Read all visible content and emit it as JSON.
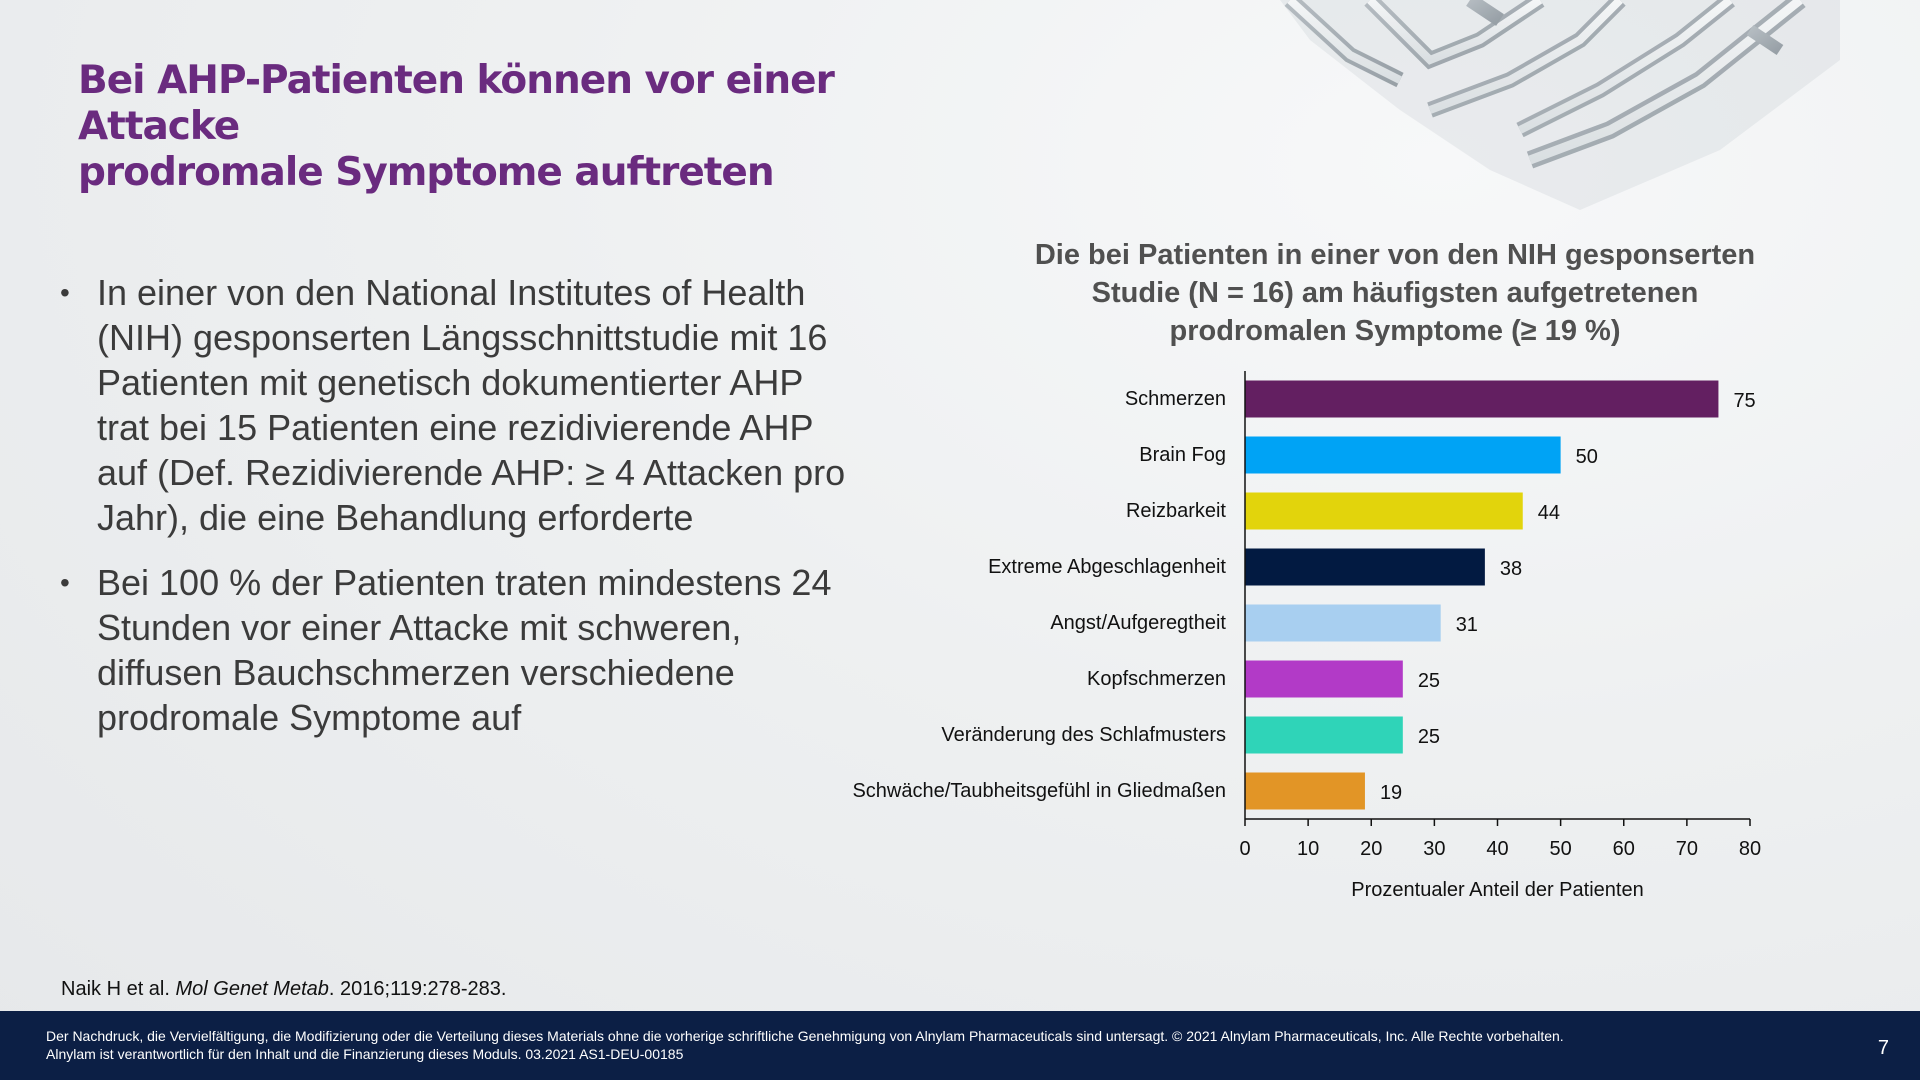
{
  "slide": {
    "title_line1": "Bei AHP-Patienten können vor einer Attacke",
    "title_line2": "prodromale Symptome auftreten",
    "bullets": [
      "In einer von den National Institutes of Health (NIH) gesponserten Längsschnittstudie mit 16 Patienten mit genetisch dokumentierter AHP trat bei 15 Patienten eine rezidivierende AHP auf (Def. Rezidivierende AHP: ≥ 4 Attacken pro Jahr), die eine Behandlung erforderte",
      "Bei 100 % der Patienten traten mindestens 24 Stunden vor einer Attacke mit schweren, diffusen Bauchschmerzen verschiedene prodromale Symptome auf"
    ],
    "bullet_glyph": "•",
    "reference": {
      "authors": "Naik H et al. ",
      "journal": "Mol Genet Metab",
      "details": ". 2016;119:278-283."
    },
    "footer": {
      "line1": "Der Nachdruck, die Vervielfältigung, die Modifizierung oder die Verteilung dieses Materials ohne die vorherige schriftliche Genehmigung von Alnylam Pharmaceuticals sind untersagt. © 2021 Alnylam Pharmaceuticals, Inc. Alle Rechte vorbehalten.",
      "line2": "Alnylam ist verantwortlich für den Inhalt und die Finanzierung dieses Moduls. 03.2021 AS1-DEU-00185",
      "page_number": "7"
    }
  },
  "chart_data": {
    "type": "bar",
    "orientation": "horizontal",
    "title_lines": [
      "Die bei Patienten in einer von den NIH gesponserten",
      "Studie (N = 16) am häufigsten aufgetretenen",
      "prodromalen Symptome (≥ 19 %)"
    ],
    "categories": [
      "Schmerzen",
      "Brain Fog",
      "Reizbarkeit",
      "Extreme Abgeschlagenheit",
      "Angst/Aufgeregtheit",
      "Kopfschmerzen",
      "Veränderung des Schlafmusters",
      "Schwäche/Taubheitsgefühl in Gliedmaßen"
    ],
    "values": [
      75,
      50,
      44,
      38,
      31,
      25,
      25,
      19
    ],
    "colors": [
      "#631f61",
      "#00a3f5",
      "#e2d40c",
      "#021a41",
      "#a8cff0",
      "#b23ac7",
      "#2fd4b8",
      "#e29526"
    ],
    "xlabel": "Prozentualer Anteil der Patienten",
    "xlim": [
      0,
      80
    ],
    "xticks": [
      0,
      10,
      20,
      30,
      40,
      50,
      60,
      70,
      80
    ],
    "grid": false,
    "data_labels": true
  }
}
